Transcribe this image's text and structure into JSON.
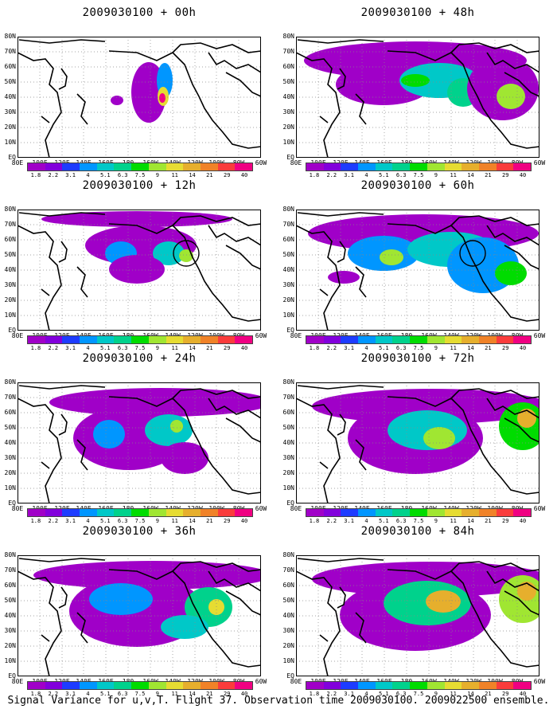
{
  "caption": "Signal Variance for u,v,T. Flight 37. Observation time 2009030100. 2009022500 ensemble.",
  "lat_labels": [
    "80N",
    "70N",
    "60N",
    "50N",
    "40N",
    "30N",
    "20N",
    "10N",
    "EQ"
  ],
  "lon_labels": [
    "80E",
    "100E",
    "120E",
    "140E",
    "160E",
    "180",
    "160W",
    "140W",
    "120W",
    "100W",
    "80W",
    "60W"
  ],
  "colorbar": {
    "levels": [
      "1.8",
      "2.2",
      "3.1",
      "4",
      "5.1",
      "6.3",
      "7.5",
      "9",
      "11",
      "14",
      "21",
      "29",
      "40"
    ],
    "colors": [
      "#a000c8",
      "#8200dc",
      "#1e3cff",
      "#0096ff",
      "#00c8c8",
      "#00d28c",
      "#00dc00",
      "#a0e632",
      "#e6dc32",
      "#e6af2d",
      "#f08228",
      "#fa3c3c",
      "#f00082"
    ]
  },
  "panels": [
    {
      "title": "2009030100 + 00h",
      "circle": false
    },
    {
      "title": "2009030100 + 48h",
      "circle": false
    },
    {
      "title": "2009030100 + 12h",
      "circle": true
    },
    {
      "title": "2009030100 + 60h",
      "circle": true
    },
    {
      "title": "2009030100 + 24h",
      "circle": false
    },
    {
      "title": "2009030100 + 72h",
      "circle": false
    },
    {
      "title": "2009030100 + 36h",
      "circle": false
    },
    {
      "title": "2009030100 + 84h",
      "circle": false
    }
  ]
}
